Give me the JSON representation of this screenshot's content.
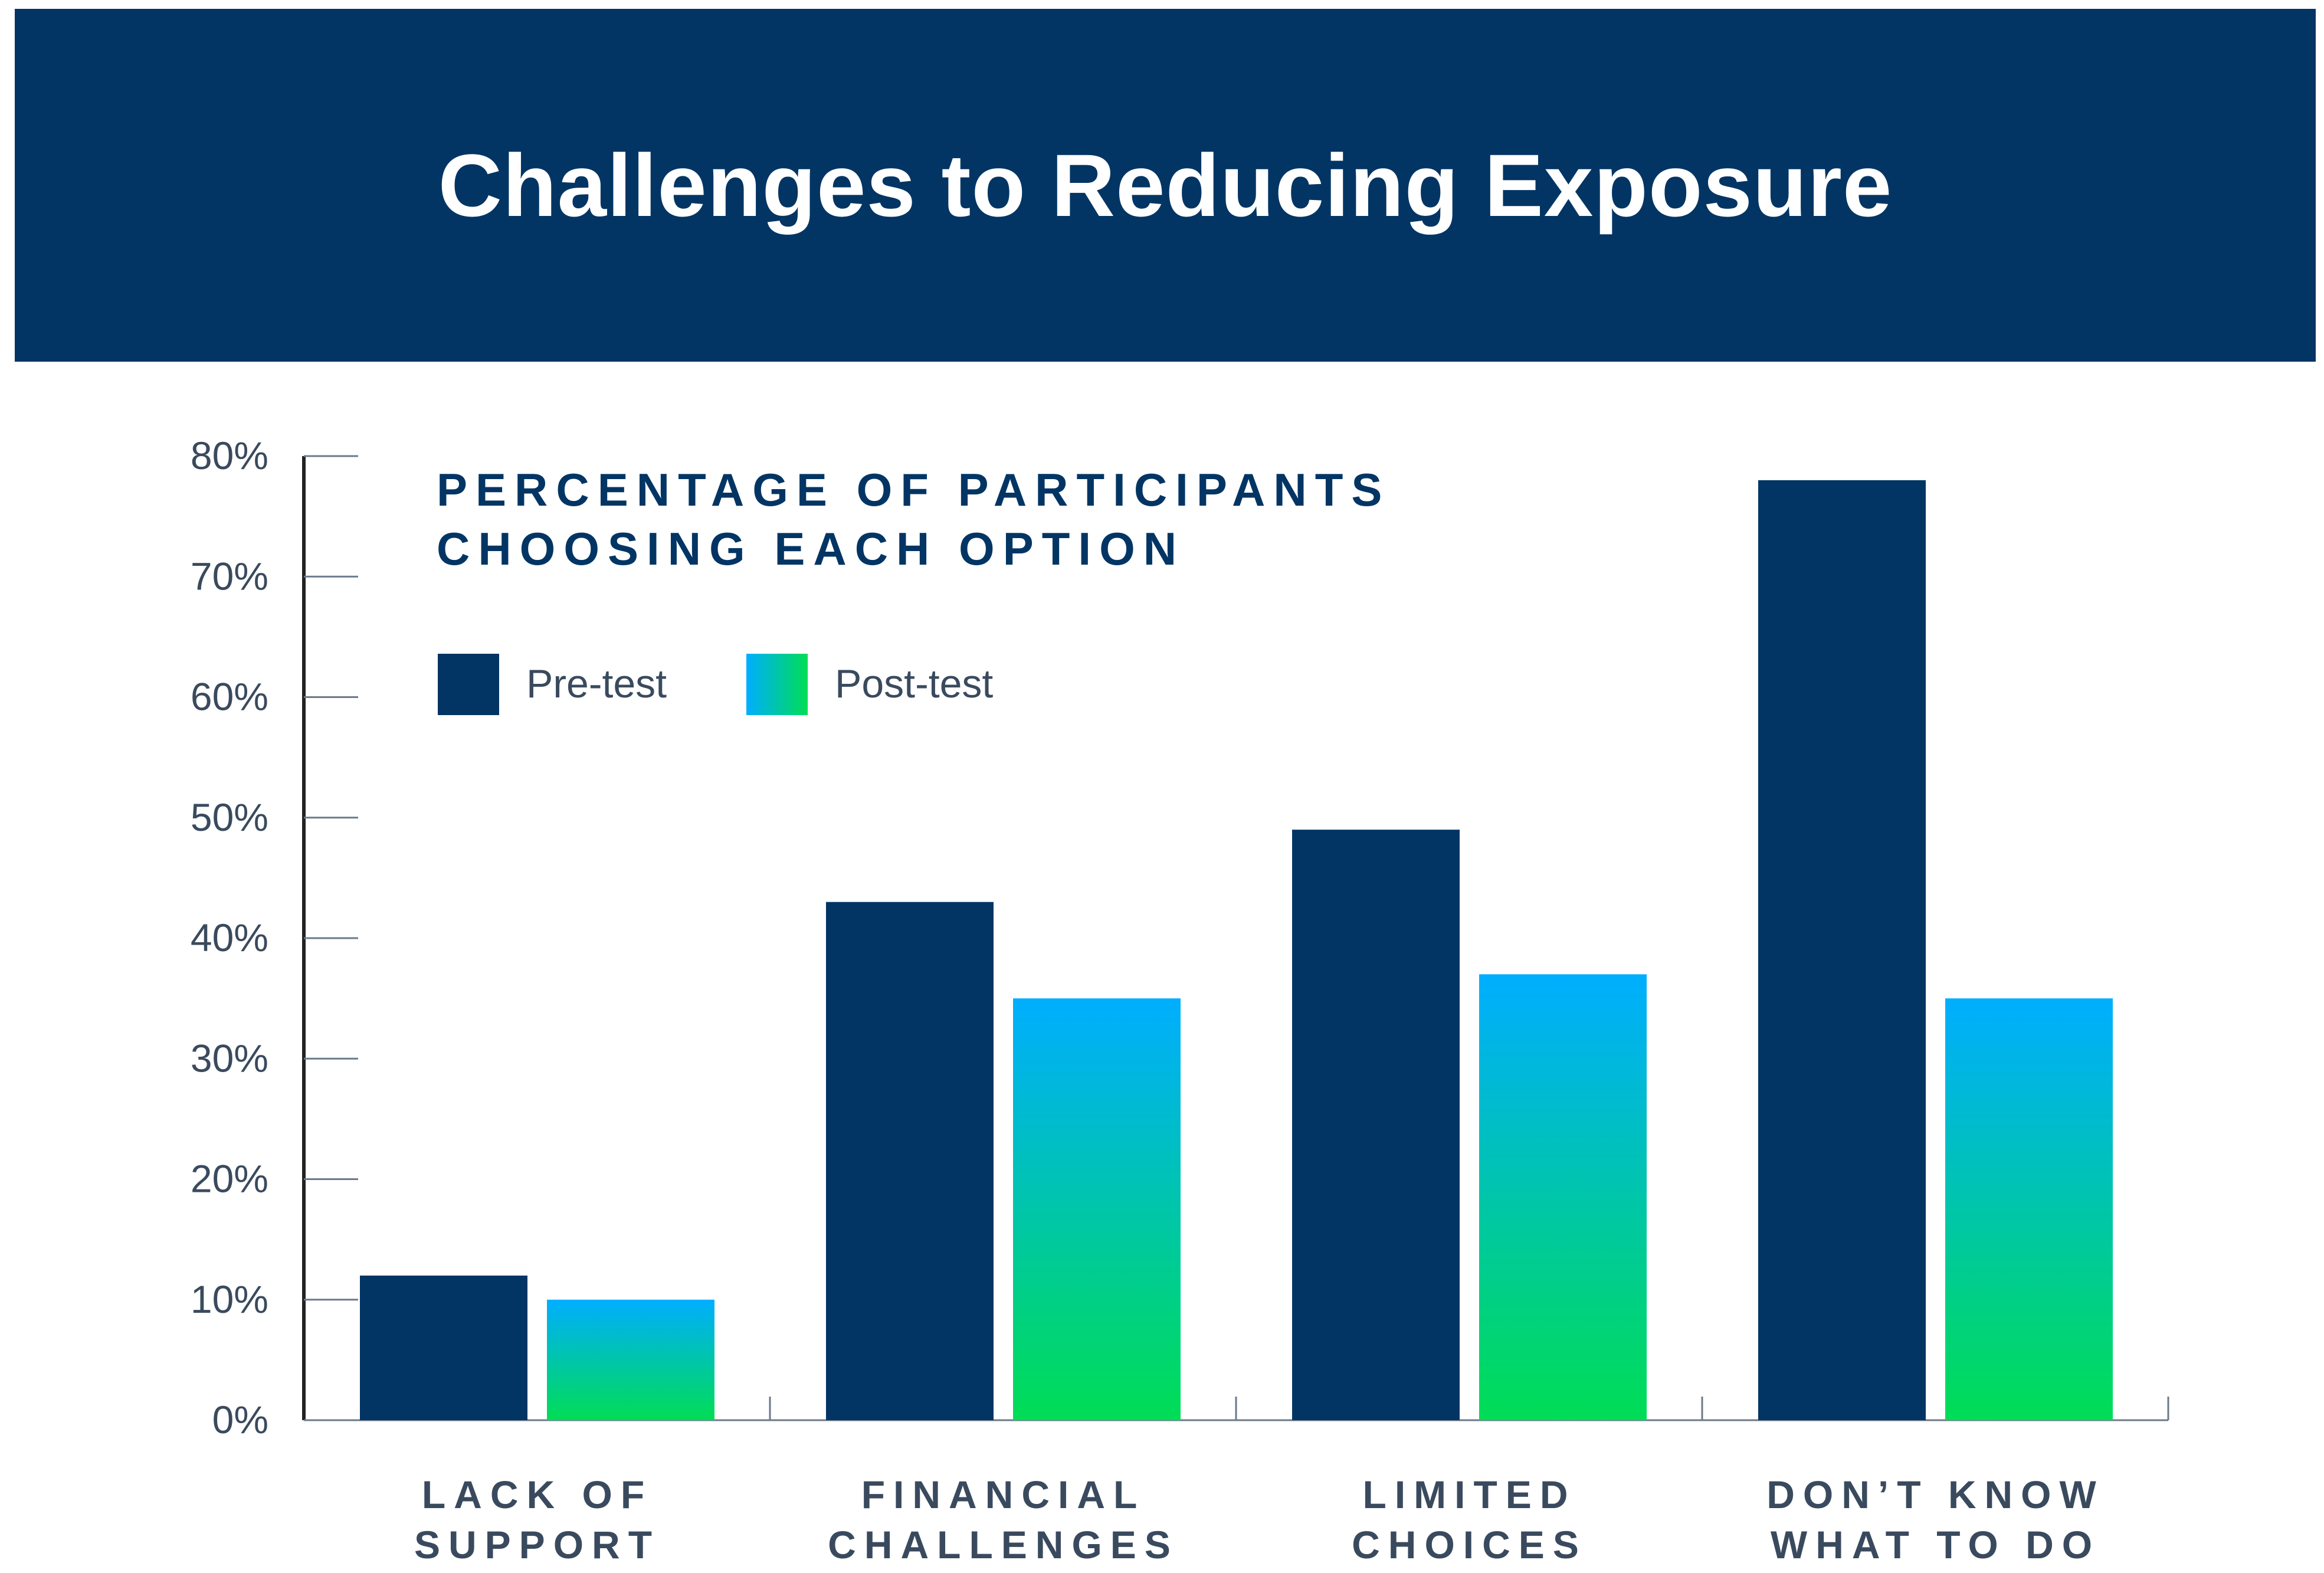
{
  "header": {
    "title": "Challenges to Reducing Exposure"
  },
  "colors": {
    "banner": "#023564",
    "pre": "#023564",
    "post_top": "#00aeff",
    "post_bottom": "#00dd55",
    "axis_text": "#3a4a5e",
    "axis_line": "#222222"
  },
  "chart_data": {
    "type": "bar",
    "title": "Challenges to Reducing Exposure",
    "subtitle": [
      "PERCENTAGE OF PARTICIPANTS",
      "CHOOSING EACH OPTION"
    ],
    "categories": [
      [
        "LACK OF",
        "SUPPORT"
      ],
      [
        "FINANCIAL",
        "CHALLENGES"
      ],
      [
        "LIMITED",
        "CHOICES"
      ],
      [
        "DON’T KNOW",
        "WHAT TO DO"
      ]
    ],
    "series": [
      {
        "name": "Pre-test",
        "values": [
          12,
          43,
          49,
          78
        ]
      },
      {
        "name": "Post-test",
        "values": [
          10,
          35,
          37,
          35
        ]
      }
    ],
    "ylim": [
      0,
      80
    ],
    "yticks": [
      0,
      10,
      20,
      30,
      40,
      50,
      60,
      70,
      80
    ],
    "ytick_suffix": "%",
    "xlabel": "",
    "ylabel": "",
    "legend_position": "top-left",
    "grid": false
  }
}
